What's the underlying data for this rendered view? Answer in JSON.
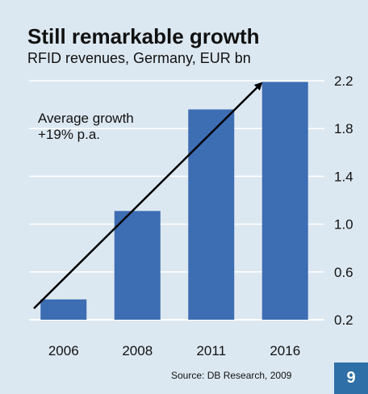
{
  "chart_data": {
    "type": "bar",
    "title": "Still remarkable growth",
    "subtitle": "RFID revenues, Germany, EUR bn",
    "categories": [
      "2006",
      "2008",
      "2011",
      "2016"
    ],
    "values": [
      0.37,
      1.11,
      1.96,
      2.19
    ],
    "ylim": [
      0.2,
      2.2
    ],
    "yticks": [
      "2.2",
      "1.8",
      "1.4",
      "1.0",
      "0.6",
      "0.2"
    ],
    "ytick_values": [
      2.2,
      1.8,
      1.4,
      1.0,
      0.6,
      0.2
    ],
    "y_axis_position": "right",
    "grid": true,
    "annotation": {
      "line1": "Average growth",
      "line2": "+19% p.a."
    },
    "colors": {
      "bar": "#3d6db3",
      "background": "#dce8f1",
      "grid": "#ffffff",
      "arrow": "#000000"
    }
  },
  "source": "Source: DB Research, 2009",
  "page_number": "9"
}
